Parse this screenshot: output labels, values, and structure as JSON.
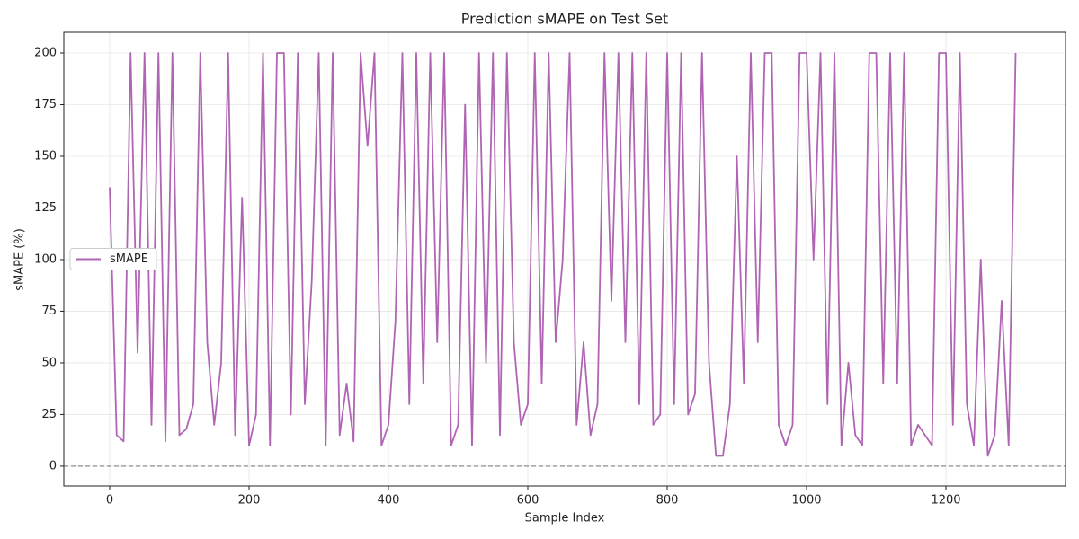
{
  "chart_data": {
    "type": "line",
    "title": "Prediction sMAPE on Test Set",
    "x_label": "Sample Index",
    "y_label": "sMAPE (%)",
    "x": [
      0,
      10,
      20,
      30,
      40,
      50,
      60,
      70,
      80,
      90,
      100,
      110,
      120,
      130,
      140,
      150,
      160,
      170,
      180,
      190,
      200,
      210,
      220,
      230,
      240,
      250,
      260,
      270,
      280,
      290,
      300,
      310,
      320,
      330,
      340,
      350,
      360,
      370,
      380,
      390,
      400,
      410,
      420,
      430,
      440,
      450,
      460,
      470,
      480,
      490,
      500,
      510,
      520,
      530,
      540,
      550,
      560,
      570,
      580,
      590,
      600,
      610,
      620,
      630,
      640,
      650,
      660,
      670,
      680,
      690,
      700,
      710,
      720,
      730,
      740,
      750,
      760,
      770,
      780,
      790,
      800,
      810,
      820,
      830,
      840,
      850,
      860,
      870,
      880,
      890,
      900,
      910,
      920,
      930,
      940,
      950,
      960,
      970,
      980,
      990,
      1000,
      1010,
      1020,
      1030,
      1040,
      1050,
      1060,
      1070,
      1080,
      1090,
      1100,
      1110,
      1120,
      1130,
      1140,
      1150,
      1160,
      1170,
      1180,
      1190,
      1200,
      1210,
      1220,
      1230,
      1240,
      1250,
      1260,
      1270,
      1280,
      1290,
      1300
    ],
    "series": [
      {
        "name": "sMAPE",
        "color": "#b065b4",
        "values": [
          135,
          15,
          12,
          200,
          55,
          200,
          20,
          200,
          12,
          200,
          15,
          18,
          30,
          200,
          60,
          20,
          50,
          200,
          15,
          130,
          10,
          25,
          200,
          10,
          200,
          200,
          25,
          200,
          30,
          90,
          200,
          10,
          200,
          15,
          40,
          12,
          200,
          155,
          200,
          10,
          20,
          70,
          200,
          30,
          200,
          40,
          200,
          60,
          200,
          10,
          20,
          175,
          10,
          200,
          50,
          200,
          15,
          200,
          60,
          20,
          30,
          200,
          40,
          200,
          60,
          100,
          200,
          20,
          60,
          15,
          30,
          200,
          80,
          200,
          60,
          200,
          30,
          200,
          20,
          25,
          200,
          30,
          200,
          25,
          35,
          200,
          50,
          5,
          5,
          30,
          150,
          40,
          200,
          60,
          200,
          200,
          20,
          10,
          20,
          200,
          200,
          100,
          200,
          30,
          200,
          10,
          50,
          15,
          10,
          200,
          200,
          40,
          200,
          40,
          200,
          10,
          20,
          15,
          10,
          200,
          200,
          20,
          200,
          30,
          10,
          100,
          5,
          15,
          80,
          10,
          200
        ]
      }
    ],
    "hline": 0,
    "hline_color": "#808080",
    "xlim": [
      -65.8,
      1371.6
    ],
    "ylim": [
      -9.6,
      210
    ],
    "xticks": [
      0,
      200,
      400,
      600,
      800,
      1000,
      1200
    ],
    "yticks": [
      0,
      25,
      50,
      75,
      100,
      125,
      150,
      175,
      200
    ],
    "grid": true,
    "legend": "center left"
  }
}
